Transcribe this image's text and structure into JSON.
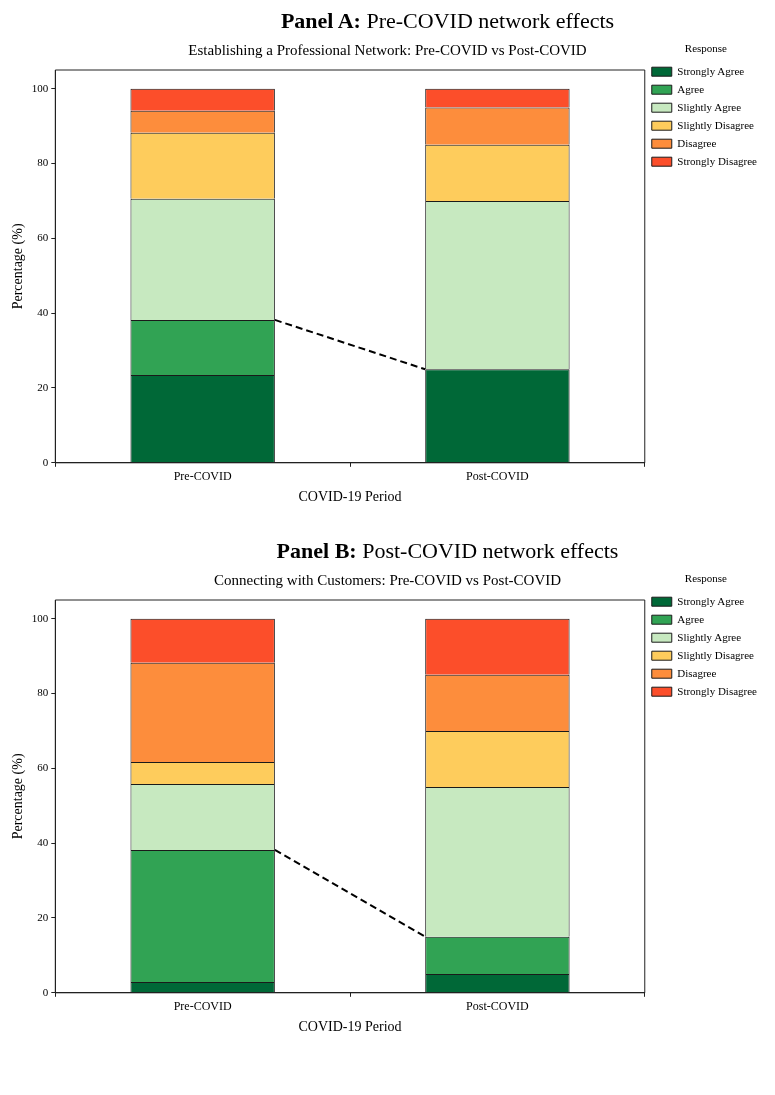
{
  "chart_data": [
    {
      "type": "bar",
      "title": "Panel A: Pre-COVID network effects",
      "subtitle": "Establishing a Professional Network: Pre-COVID vs Post-COVID",
      "xlabel": "COVID-19 Period",
      "ylabel": "Percentage (%)",
      "legend_title": "Response",
      "legend": "top right",
      "stacked": true,
      "categories": [
        "Pre-COVID",
        "Post-COVID"
      ],
      "ylim": [
        0,
        105
      ],
      "yticks": [
        0,
        20,
        40,
        60,
        80,
        100
      ],
      "series": [
        {
          "name": "Strongly Agree",
          "color": "#006837",
          "values": [
            23.5,
            25
          ]
        },
        {
          "name": "Agree",
          "color": "#31a354",
          "values": [
            14.7,
            0
          ]
        },
        {
          "name": "Slightly Agree",
          "color": "#c7e9c0",
          "values": [
            32.4,
            45
          ]
        },
        {
          "name": "Slightly Disagree",
          "color": "#fecc5c",
          "values": [
            17.6,
            15
          ]
        },
        {
          "name": "Disagree",
          "color": "#fd8d3c",
          "values": [
            5.9,
            10
          ]
        },
        {
          "name": "Strongly Disagree",
          "color": "#fc4e2a",
          "values": [
            5.9,
            5
          ]
        }
      ]
    },
    {
      "type": "bar",
      "title": "Panel B: Post-COVID network effects",
      "subtitle": "Connecting with Customers: Pre-COVID vs Post-COVID",
      "xlabel": "COVID-19 Period",
      "ylabel": "Percentage (%)",
      "legend_title": "Response",
      "legend": "top right",
      "stacked": true,
      "categories": [
        "Pre-COVID",
        "Post-COVID"
      ],
      "ylim": [
        0,
        105
      ],
      "yticks": [
        0,
        20,
        40,
        60,
        80,
        100
      ],
      "series": [
        {
          "name": "Strongly Agree",
          "color": "#006837",
          "values": [
            2.9,
            5
          ]
        },
        {
          "name": "Agree",
          "color": "#31a354",
          "values": [
            35.3,
            10
          ]
        },
        {
          "name": "Slightly Agree",
          "color": "#c7e9c0",
          "values": [
            17.6,
            40
          ]
        },
        {
          "name": "Slightly Disagree",
          "color": "#fecc5c",
          "values": [
            5.9,
            15
          ]
        },
        {
          "name": "Disagree",
          "color": "#fd8d3c",
          "values": [
            26.5,
            15
          ]
        },
        {
          "name": "Strongly Disagree",
          "color": "#fc4e2a",
          "values": [
            11.8,
            15
          ]
        }
      ]
    }
  ]
}
